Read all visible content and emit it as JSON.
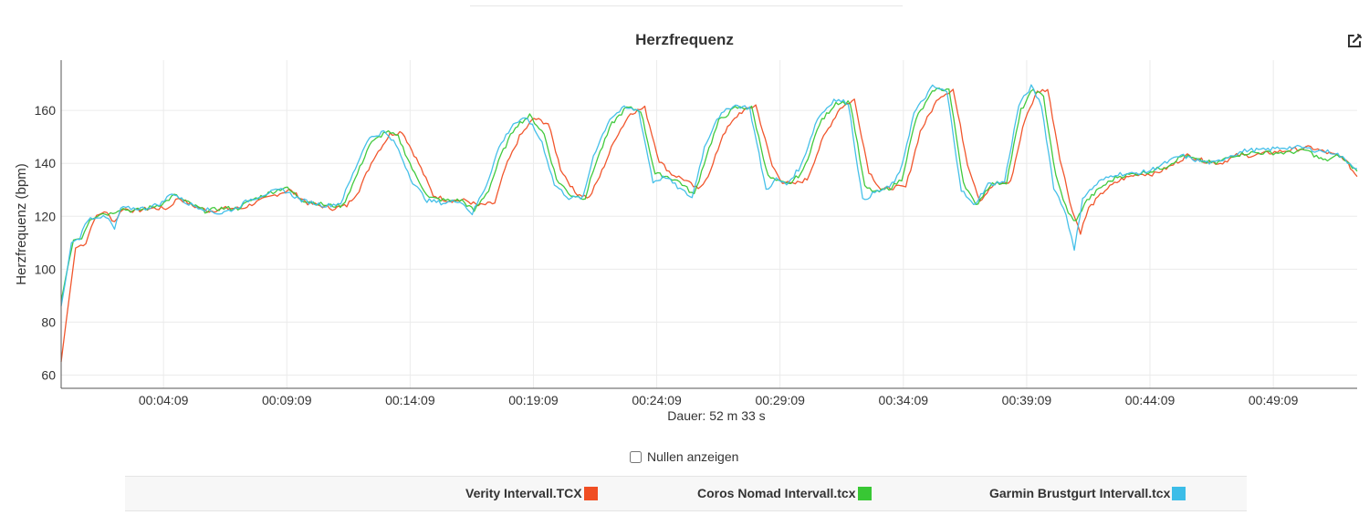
{
  "chart_data": {
    "type": "line",
    "title": "Herzfrequenz",
    "ylabel": "Herzfrequenz (bpm)",
    "xlabel": "Dauer: 52 m 33 s",
    "ylim": [
      55,
      179
    ],
    "xlim_seconds": [
      0,
      3153
    ],
    "yticks": [
      60,
      80,
      100,
      120,
      140,
      160
    ],
    "xticks": [
      {
        "t": 249,
        "label": "00:04:09"
      },
      {
        "t": 549,
        "label": "00:09:09"
      },
      {
        "t": 849,
        "label": "00:14:09"
      },
      {
        "t": 1149,
        "label": "00:19:09"
      },
      {
        "t": 1449,
        "label": "00:24:09"
      },
      {
        "t": 1749,
        "label": "00:29:09"
      },
      {
        "t": 2049,
        "label": "00:34:09"
      },
      {
        "t": 2349,
        "label": "00:39:09"
      },
      {
        "t": 2649,
        "label": "00:44:09"
      },
      {
        "t": 2949,
        "label": "00:49:09"
      }
    ],
    "grid": true,
    "legend_position": "bottom",
    "x_unit": "seconds elapsed",
    "series": [
      {
        "name": "Verity Intervall.TCX",
        "color": "#f04e23",
        "points": [
          [
            0,
            65
          ],
          [
            12,
            80
          ],
          [
            35,
            108
          ],
          [
            60,
            110
          ],
          [
            80,
            119
          ],
          [
            105,
            122
          ],
          [
            130,
            118
          ],
          [
            150,
            123
          ],
          [
            180,
            122
          ],
          [
            215,
            123
          ],
          [
            260,
            123
          ],
          [
            285,
            127
          ],
          [
            320,
            124
          ],
          [
            360,
            122
          ],
          [
            400,
            123
          ],
          [
            440,
            123
          ],
          [
            470,
            125
          ],
          [
            520,
            128
          ],
          [
            555,
            130
          ],
          [
            600,
            125
          ],
          [
            660,
            123
          ],
          [
            695,
            124
          ],
          [
            725,
            130
          ],
          [
            760,
            142
          ],
          [
            800,
            151
          ],
          [
            830,
            152
          ],
          [
            870,
            140
          ],
          [
            905,
            128
          ],
          [
            940,
            126
          ],
          [
            985,
            126
          ],
          [
            1015,
            124
          ],
          [
            1055,
            125
          ],
          [
            1080,
            138
          ],
          [
            1115,
            150
          ],
          [
            1150,
            157
          ],
          [
            1185,
            155
          ],
          [
            1215,
            138
          ],
          [
            1250,
            129
          ],
          [
            1285,
            127
          ],
          [
            1310,
            135
          ],
          [
            1350,
            150
          ],
          [
            1385,
            159
          ],
          [
            1420,
            161
          ],
          [
            1455,
            141
          ],
          [
            1485,
            136
          ],
          [
            1515,
            134
          ],
          [
            1550,
            130
          ],
          [
            1580,
            137
          ],
          [
            1610,
            151
          ],
          [
            1650,
            159
          ],
          [
            1690,
            162
          ],
          [
            1730,
            139
          ],
          [
            1755,
            133
          ],
          [
            1780,
            132
          ],
          [
            1815,
            134
          ],
          [
            1855,
            150
          ],
          [
            1895,
            161
          ],
          [
            1930,
            164
          ],
          [
            1965,
            137
          ],
          [
            1995,
            130
          ],
          [
            2030,
            131
          ],
          [
            2055,
            131
          ],
          [
            2090,
            152
          ],
          [
            2135,
            165
          ],
          [
            2170,
            168
          ],
          [
            2205,
            140
          ],
          [
            2235,
            126
          ],
          [
            2270,
            132
          ],
          [
            2310,
            133
          ],
          [
            2345,
            157
          ],
          [
            2375,
            167
          ],
          [
            2400,
            168
          ],
          [
            2430,
            142
          ],
          [
            2460,
            122
          ],
          [
            2480,
            114
          ],
          [
            2500,
            123
          ],
          [
            2540,
            130
          ],
          [
            2580,
            134
          ],
          [
            2620,
            136
          ],
          [
            2660,
            136
          ],
          [
            2700,
            139
          ],
          [
            2740,
            143
          ],
          [
            2780,
            141
          ],
          [
            2820,
            140
          ],
          [
            2860,
            143
          ],
          [
            2900,
            143
          ],
          [
            2940,
            144
          ],
          [
            2990,
            145
          ],
          [
            3040,
            146
          ],
          [
            3080,
            144
          ],
          [
            3120,
            142
          ],
          [
            3153,
            135
          ]
        ]
      },
      {
        "name": "Coros Nomad Intervall.tcx",
        "color": "#38c734",
        "points": [
          [
            0,
            88
          ],
          [
            15,
            100
          ],
          [
            30,
            111
          ],
          [
            50,
            112
          ],
          [
            70,
            119
          ],
          [
            95,
            121
          ],
          [
            120,
            121
          ],
          [
            145,
            123
          ],
          [
            175,
            122
          ],
          [
            210,
            123
          ],
          [
            250,
            125
          ],
          [
            275,
            128
          ],
          [
            310,
            125
          ],
          [
            350,
            122
          ],
          [
            390,
            123
          ],
          [
            430,
            123
          ],
          [
            462,
            126
          ],
          [
            510,
            129
          ],
          [
            545,
            131
          ],
          [
            590,
            126
          ],
          [
            650,
            124
          ],
          [
            685,
            124
          ],
          [
            715,
            134
          ],
          [
            750,
            147
          ],
          [
            790,
            152
          ],
          [
            820,
            150
          ],
          [
            860,
            136
          ],
          [
            895,
            127
          ],
          [
            935,
            126
          ],
          [
            975,
            126
          ],
          [
            1005,
            122
          ],
          [
            1040,
            130
          ],
          [
            1070,
            143
          ],
          [
            1105,
            154
          ],
          [
            1140,
            158
          ],
          [
            1175,
            151
          ],
          [
            1205,
            134
          ],
          [
            1240,
            128
          ],
          [
            1275,
            127
          ],
          [
            1300,
            140
          ],
          [
            1340,
            155
          ],
          [
            1375,
            161
          ],
          [
            1410,
            160
          ],
          [
            1445,
            136
          ],
          [
            1475,
            135
          ],
          [
            1505,
            133
          ],
          [
            1540,
            128
          ],
          [
            1570,
            143
          ],
          [
            1600,
            156
          ],
          [
            1640,
            161
          ],
          [
            1680,
            161
          ],
          [
            1720,
            135
          ],
          [
            1745,
            133
          ],
          [
            1770,
            132
          ],
          [
            1805,
            137
          ],
          [
            1845,
            155
          ],
          [
            1885,
            163
          ],
          [
            1920,
            163
          ],
          [
            1955,
            131
          ],
          [
            1985,
            129
          ],
          [
            2020,
            131
          ],
          [
            2045,
            134
          ],
          [
            2080,
            157
          ],
          [
            2125,
            168
          ],
          [
            2160,
            168
          ],
          [
            2195,
            133
          ],
          [
            2225,
            124
          ],
          [
            2260,
            132
          ],
          [
            2300,
            133
          ],
          [
            2335,
            160
          ],
          [
            2365,
            168
          ],
          [
            2390,
            165
          ],
          [
            2420,
            135
          ],
          [
            2450,
            121
          ],
          [
            2470,
            118
          ],
          [
            2490,
            125
          ],
          [
            2530,
            131
          ],
          [
            2570,
            135
          ],
          [
            2610,
            136
          ],
          [
            2650,
            137
          ],
          [
            2690,
            139
          ],
          [
            2730,
            143
          ],
          [
            2770,
            141
          ],
          [
            2810,
            140
          ],
          [
            2850,
            143
          ],
          [
            2890,
            144
          ],
          [
            2930,
            144
          ],
          [
            2980,
            144
          ],
          [
            3030,
            145
          ],
          [
            3060,
            142
          ],
          [
            3075,
            141
          ],
          [
            3110,
            143
          ],
          [
            3153,
            137
          ]
        ]
      },
      {
        "name": "Garmin Brustgurt Intervall.tcx",
        "color": "#3cbde8",
        "points": [
          [
            0,
            86
          ],
          [
            10,
            95
          ],
          [
            25,
            110
          ],
          [
            45,
            112
          ],
          [
            65,
            119
          ],
          [
            90,
            120
          ],
          [
            115,
            119
          ],
          [
            130,
            115
          ],
          [
            145,
            123
          ],
          [
            170,
            123
          ],
          [
            205,
            123
          ],
          [
            245,
            125
          ],
          [
            270,
            129
          ],
          [
            305,
            125
          ],
          [
            345,
            123
          ],
          [
            385,
            121
          ],
          [
            425,
            123
          ],
          [
            455,
            126
          ],
          [
            505,
            129
          ],
          [
            540,
            130
          ],
          [
            585,
            126
          ],
          [
            645,
            124
          ],
          [
            680,
            125
          ],
          [
            710,
            136
          ],
          [
            745,
            149
          ],
          [
            785,
            152
          ],
          [
            815,
            147
          ],
          [
            855,
            133
          ],
          [
            890,
            126
          ],
          [
            930,
            125
          ],
          [
            970,
            126
          ],
          [
            1000,
            121
          ],
          [
            1035,
            132
          ],
          [
            1065,
            146
          ],
          [
            1100,
            155
          ],
          [
            1135,
            157
          ],
          [
            1170,
            148
          ],
          [
            1200,
            132
          ],
          [
            1235,
            127
          ],
          [
            1270,
            127
          ],
          [
            1295,
            143
          ],
          [
            1335,
            157
          ],
          [
            1370,
            161
          ],
          [
            1405,
            160
          ],
          [
            1440,
            133
          ],
          [
            1470,
            135
          ],
          [
            1500,
            131
          ],
          [
            1535,
            127
          ],
          [
            1565,
            146
          ],
          [
            1595,
            157
          ],
          [
            1635,
            162
          ],
          [
            1675,
            161
          ],
          [
            1715,
            130
          ],
          [
            1740,
            134
          ],
          [
            1765,
            132
          ],
          [
            1800,
            139
          ],
          [
            1840,
            157
          ],
          [
            1880,
            164
          ],
          [
            1915,
            163
          ],
          [
            1950,
            126
          ],
          [
            1980,
            129
          ],
          [
            2015,
            131
          ],
          [
            2040,
            136
          ],
          [
            2075,
            159
          ],
          [
            2120,
            169
          ],
          [
            2155,
            167
          ],
          [
            2190,
            130
          ],
          [
            2220,
            124
          ],
          [
            2255,
            132
          ],
          [
            2295,
            133
          ],
          [
            2330,
            162
          ],
          [
            2360,
            169
          ],
          [
            2385,
            162
          ],
          [
            2415,
            131
          ],
          [
            2445,
            121
          ],
          [
            2465,
            107
          ],
          [
            2485,
            127
          ],
          [
            2525,
            133
          ],
          [
            2565,
            136
          ],
          [
            2605,
            136
          ],
          [
            2645,
            137
          ],
          [
            2685,
            140
          ],
          [
            2725,
            143
          ],
          [
            2765,
            141
          ],
          [
            2805,
            140
          ],
          [
            2845,
            143
          ],
          [
            2885,
            145
          ],
          [
            2925,
            145
          ],
          [
            2970,
            146
          ],
          [
            3020,
            146
          ],
          [
            3050,
            145
          ],
          [
            3100,
            144
          ],
          [
            3153,
            138
          ]
        ]
      }
    ]
  },
  "controls": {
    "show_zeros_label": "Nullen anzeigen",
    "show_zeros_checked": false
  },
  "icons": {
    "edit": "edit-icon"
  }
}
